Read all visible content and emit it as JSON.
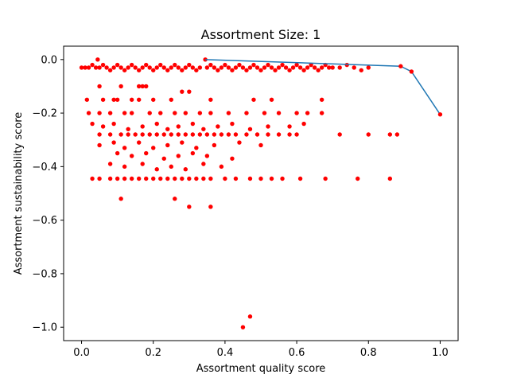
{
  "chart_data": {
    "type": "scatter",
    "title": "Assortment Size: 1",
    "xlabel": "Assortment quality score",
    "ylabel": "Assortment sustainability score",
    "xlim": [
      -0.05,
      1.05
    ],
    "ylim": [
      -1.05,
      0.05
    ],
    "x_ticks": [
      0.0,
      0.2,
      0.4,
      0.6,
      0.8,
      1.0
    ],
    "x_tick_labels": [
      "0.0",
      "0.2",
      "0.4",
      "0.6",
      "0.8",
      "1.0"
    ],
    "y_ticks": [
      0.0,
      -0.2,
      -0.4,
      -0.6,
      -0.8,
      -1.0
    ],
    "y_tick_labels": [
      "0.0",
      "−0.2",
      "−0.4",
      "−0.6",
      "−0.8",
      "−1.0"
    ],
    "grid": false,
    "colors": {
      "scatter": "#ff0000",
      "frontier": "#1f77b4"
    },
    "series": [
      {
        "kind": "scatter",
        "points": [
          [
            0.0,
            -0.03
          ],
          [
            0.01,
            -0.03
          ],
          [
            0.02,
            -0.03
          ],
          [
            0.03,
            -0.02
          ],
          [
            0.04,
            -0.03
          ],
          [
            0.045,
            0.0
          ],
          [
            0.05,
            -0.03
          ],
          [
            0.06,
            -0.02
          ],
          [
            0.07,
            -0.03
          ],
          [
            0.08,
            -0.04
          ],
          [
            0.09,
            -0.03
          ],
          [
            0.1,
            -0.02
          ],
          [
            0.11,
            -0.03
          ],
          [
            0.12,
            -0.04
          ],
          [
            0.13,
            -0.03
          ],
          [
            0.14,
            -0.02
          ],
          [
            0.15,
            -0.03
          ],
          [
            0.16,
            -0.04
          ],
          [
            0.17,
            -0.03
          ],
          [
            0.18,
            -0.02
          ],
          [
            0.19,
            -0.03
          ],
          [
            0.2,
            -0.04
          ],
          [
            0.21,
            -0.03
          ],
          [
            0.22,
            -0.02
          ],
          [
            0.23,
            -0.03
          ],
          [
            0.24,
            -0.04
          ],
          [
            0.25,
            -0.03
          ],
          [
            0.26,
            -0.02
          ],
          [
            0.27,
            -0.03
          ],
          [
            0.28,
            -0.04
          ],
          [
            0.29,
            -0.03
          ],
          [
            0.3,
            -0.02
          ],
          [
            0.31,
            -0.03
          ],
          [
            0.32,
            -0.04
          ],
          [
            0.33,
            -0.03
          ],
          [
            0.345,
            0.0
          ],
          [
            0.35,
            -0.03
          ],
          [
            0.36,
            -0.02
          ],
          [
            0.37,
            -0.03
          ],
          [
            0.38,
            -0.04
          ],
          [
            0.39,
            -0.03
          ],
          [
            0.4,
            -0.02
          ],
          [
            0.41,
            -0.03
          ],
          [
            0.42,
            -0.04
          ],
          [
            0.43,
            -0.03
          ],
          [
            0.44,
            -0.02
          ],
          [
            0.45,
            -0.03
          ],
          [
            0.46,
            -0.04
          ],
          [
            0.47,
            -0.03
          ],
          [
            0.48,
            -0.02
          ],
          [
            0.49,
            -0.03
          ],
          [
            0.5,
            -0.04
          ],
          [
            0.51,
            -0.03
          ],
          [
            0.52,
            -0.02
          ],
          [
            0.53,
            -0.03
          ],
          [
            0.54,
            -0.04
          ],
          [
            0.55,
            -0.03
          ],
          [
            0.56,
            -0.02
          ],
          [
            0.57,
            -0.03
          ],
          [
            0.58,
            -0.04
          ],
          [
            0.59,
            -0.03
          ],
          [
            0.6,
            -0.02
          ],
          [
            0.61,
            -0.03
          ],
          [
            0.62,
            -0.04
          ],
          [
            0.63,
            -0.03
          ],
          [
            0.64,
            -0.02
          ],
          [
            0.65,
            -0.03
          ],
          [
            0.66,
            -0.04
          ],
          [
            0.67,
            -0.03
          ],
          [
            0.68,
            -0.02
          ],
          [
            0.69,
            -0.03
          ],
          [
            0.7,
            -0.03
          ],
          [
            0.72,
            -0.03
          ],
          [
            0.74,
            -0.02
          ],
          [
            0.76,
            -0.03
          ],
          [
            0.78,
            -0.04
          ],
          [
            0.8,
            -0.03
          ],
          [
            0.05,
            -0.1
          ],
          [
            0.11,
            -0.1
          ],
          [
            0.16,
            -0.1
          ],
          [
            0.17,
            -0.1
          ],
          [
            0.18,
            -0.1
          ],
          [
            0.28,
            -0.12
          ],
          [
            0.3,
            -0.12
          ],
          [
            0.015,
            -0.15
          ],
          [
            0.06,
            -0.15
          ],
          [
            0.09,
            -0.15
          ],
          [
            0.1,
            -0.15
          ],
          [
            0.14,
            -0.15
          ],
          [
            0.16,
            -0.15
          ],
          [
            0.2,
            -0.15
          ],
          [
            0.25,
            -0.15
          ],
          [
            0.36,
            -0.15
          ],
          [
            0.48,
            -0.15
          ],
          [
            0.53,
            -0.15
          ],
          [
            0.67,
            -0.15
          ],
          [
            0.02,
            -0.2
          ],
          [
            0.05,
            -0.2
          ],
          [
            0.08,
            -0.2
          ],
          [
            0.12,
            -0.2
          ],
          [
            0.14,
            -0.2
          ],
          [
            0.19,
            -0.2
          ],
          [
            0.22,
            -0.2
          ],
          [
            0.26,
            -0.2
          ],
          [
            0.29,
            -0.2
          ],
          [
            0.33,
            -0.2
          ],
          [
            0.36,
            -0.2
          ],
          [
            0.41,
            -0.2
          ],
          [
            0.46,
            -0.2
          ],
          [
            0.51,
            -0.2
          ],
          [
            0.55,
            -0.2
          ],
          [
            0.6,
            -0.2
          ],
          [
            0.63,
            -0.2
          ],
          [
            0.67,
            -0.2
          ],
          [
            0.03,
            -0.24
          ],
          [
            0.06,
            -0.25
          ],
          [
            0.09,
            -0.24
          ],
          [
            0.13,
            -0.26
          ],
          [
            0.17,
            -0.25
          ],
          [
            0.21,
            -0.24
          ],
          [
            0.24,
            -0.26
          ],
          [
            0.27,
            -0.25
          ],
          [
            0.31,
            -0.24
          ],
          [
            0.34,
            -0.26
          ],
          [
            0.38,
            -0.25
          ],
          [
            0.42,
            -0.24
          ],
          [
            0.47,
            -0.26
          ],
          [
            0.52,
            -0.25
          ],
          [
            0.58,
            -0.25
          ],
          [
            0.62,
            -0.24
          ],
          [
            0.05,
            -0.28
          ],
          [
            0.08,
            -0.28
          ],
          [
            0.11,
            -0.28
          ],
          [
            0.13,
            -0.28
          ],
          [
            0.15,
            -0.28
          ],
          [
            0.17,
            -0.28
          ],
          [
            0.19,
            -0.28
          ],
          [
            0.21,
            -0.28
          ],
          [
            0.23,
            -0.28
          ],
          [
            0.25,
            -0.28
          ],
          [
            0.27,
            -0.28
          ],
          [
            0.29,
            -0.28
          ],
          [
            0.31,
            -0.28
          ],
          [
            0.33,
            -0.28
          ],
          [
            0.35,
            -0.28
          ],
          [
            0.37,
            -0.28
          ],
          [
            0.39,
            -0.28
          ],
          [
            0.41,
            -0.28
          ],
          [
            0.43,
            -0.28
          ],
          [
            0.46,
            -0.28
          ],
          [
            0.49,
            -0.28
          ],
          [
            0.52,
            -0.28
          ],
          [
            0.55,
            -0.28
          ],
          [
            0.58,
            -0.28
          ],
          [
            0.6,
            -0.28
          ],
          [
            0.72,
            -0.28
          ],
          [
            0.8,
            -0.28
          ],
          [
            0.86,
            -0.28
          ],
          [
            0.88,
            -0.28
          ],
          [
            0.05,
            -0.32
          ],
          [
            0.09,
            -0.31
          ],
          [
            0.12,
            -0.33
          ],
          [
            0.16,
            -0.31
          ],
          [
            0.2,
            -0.33
          ],
          [
            0.24,
            -0.32
          ],
          [
            0.28,
            -0.31
          ],
          [
            0.32,
            -0.33
          ],
          [
            0.37,
            -0.32
          ],
          [
            0.44,
            -0.31
          ],
          [
            0.5,
            -0.32
          ],
          [
            0.1,
            -0.35
          ],
          [
            0.14,
            -0.36
          ],
          [
            0.18,
            -0.35
          ],
          [
            0.23,
            -0.37
          ],
          [
            0.27,
            -0.36
          ],
          [
            0.31,
            -0.35
          ],
          [
            0.35,
            -0.36
          ],
          [
            0.42,
            -0.37
          ],
          [
            0.08,
            -0.39
          ],
          [
            0.12,
            -0.4
          ],
          [
            0.17,
            -0.39
          ],
          [
            0.21,
            -0.41
          ],
          [
            0.25,
            -0.4
          ],
          [
            0.29,
            -0.41
          ],
          [
            0.34,
            -0.39
          ],
          [
            0.39,
            -0.4
          ],
          [
            0.03,
            -0.445
          ],
          [
            0.05,
            -0.445
          ],
          [
            0.08,
            -0.445
          ],
          [
            0.1,
            -0.445
          ],
          [
            0.12,
            -0.445
          ],
          [
            0.14,
            -0.445
          ],
          [
            0.16,
            -0.445
          ],
          [
            0.18,
            -0.445
          ],
          [
            0.2,
            -0.445
          ],
          [
            0.22,
            -0.445
          ],
          [
            0.24,
            -0.445
          ],
          [
            0.26,
            -0.445
          ],
          [
            0.28,
            -0.445
          ],
          [
            0.3,
            -0.445
          ],
          [
            0.32,
            -0.445
          ],
          [
            0.34,
            -0.445
          ],
          [
            0.36,
            -0.445
          ],
          [
            0.4,
            -0.445
          ],
          [
            0.43,
            -0.445
          ],
          [
            0.47,
            -0.445
          ],
          [
            0.5,
            -0.445
          ],
          [
            0.53,
            -0.445
          ],
          [
            0.56,
            -0.445
          ],
          [
            0.61,
            -0.445
          ],
          [
            0.68,
            -0.445
          ],
          [
            0.77,
            -0.445
          ],
          [
            0.86,
            -0.445
          ],
          [
            0.11,
            -0.52
          ],
          [
            0.26,
            -0.52
          ],
          [
            0.3,
            -0.55
          ],
          [
            0.36,
            -0.55
          ],
          [
            0.45,
            -1.0
          ],
          [
            0.47,
            -0.96
          ]
        ]
      },
      {
        "kind": "line",
        "points": [
          [
            0.345,
            0.0
          ],
          [
            0.89,
            -0.025
          ],
          [
            0.92,
            -0.045
          ],
          [
            1.0,
            -0.205
          ]
        ]
      },
      {
        "kind": "scatter",
        "points": [
          [
            0.89,
            -0.025
          ],
          [
            0.92,
            -0.045
          ],
          [
            1.0,
            -0.205
          ]
        ]
      }
    ]
  }
}
